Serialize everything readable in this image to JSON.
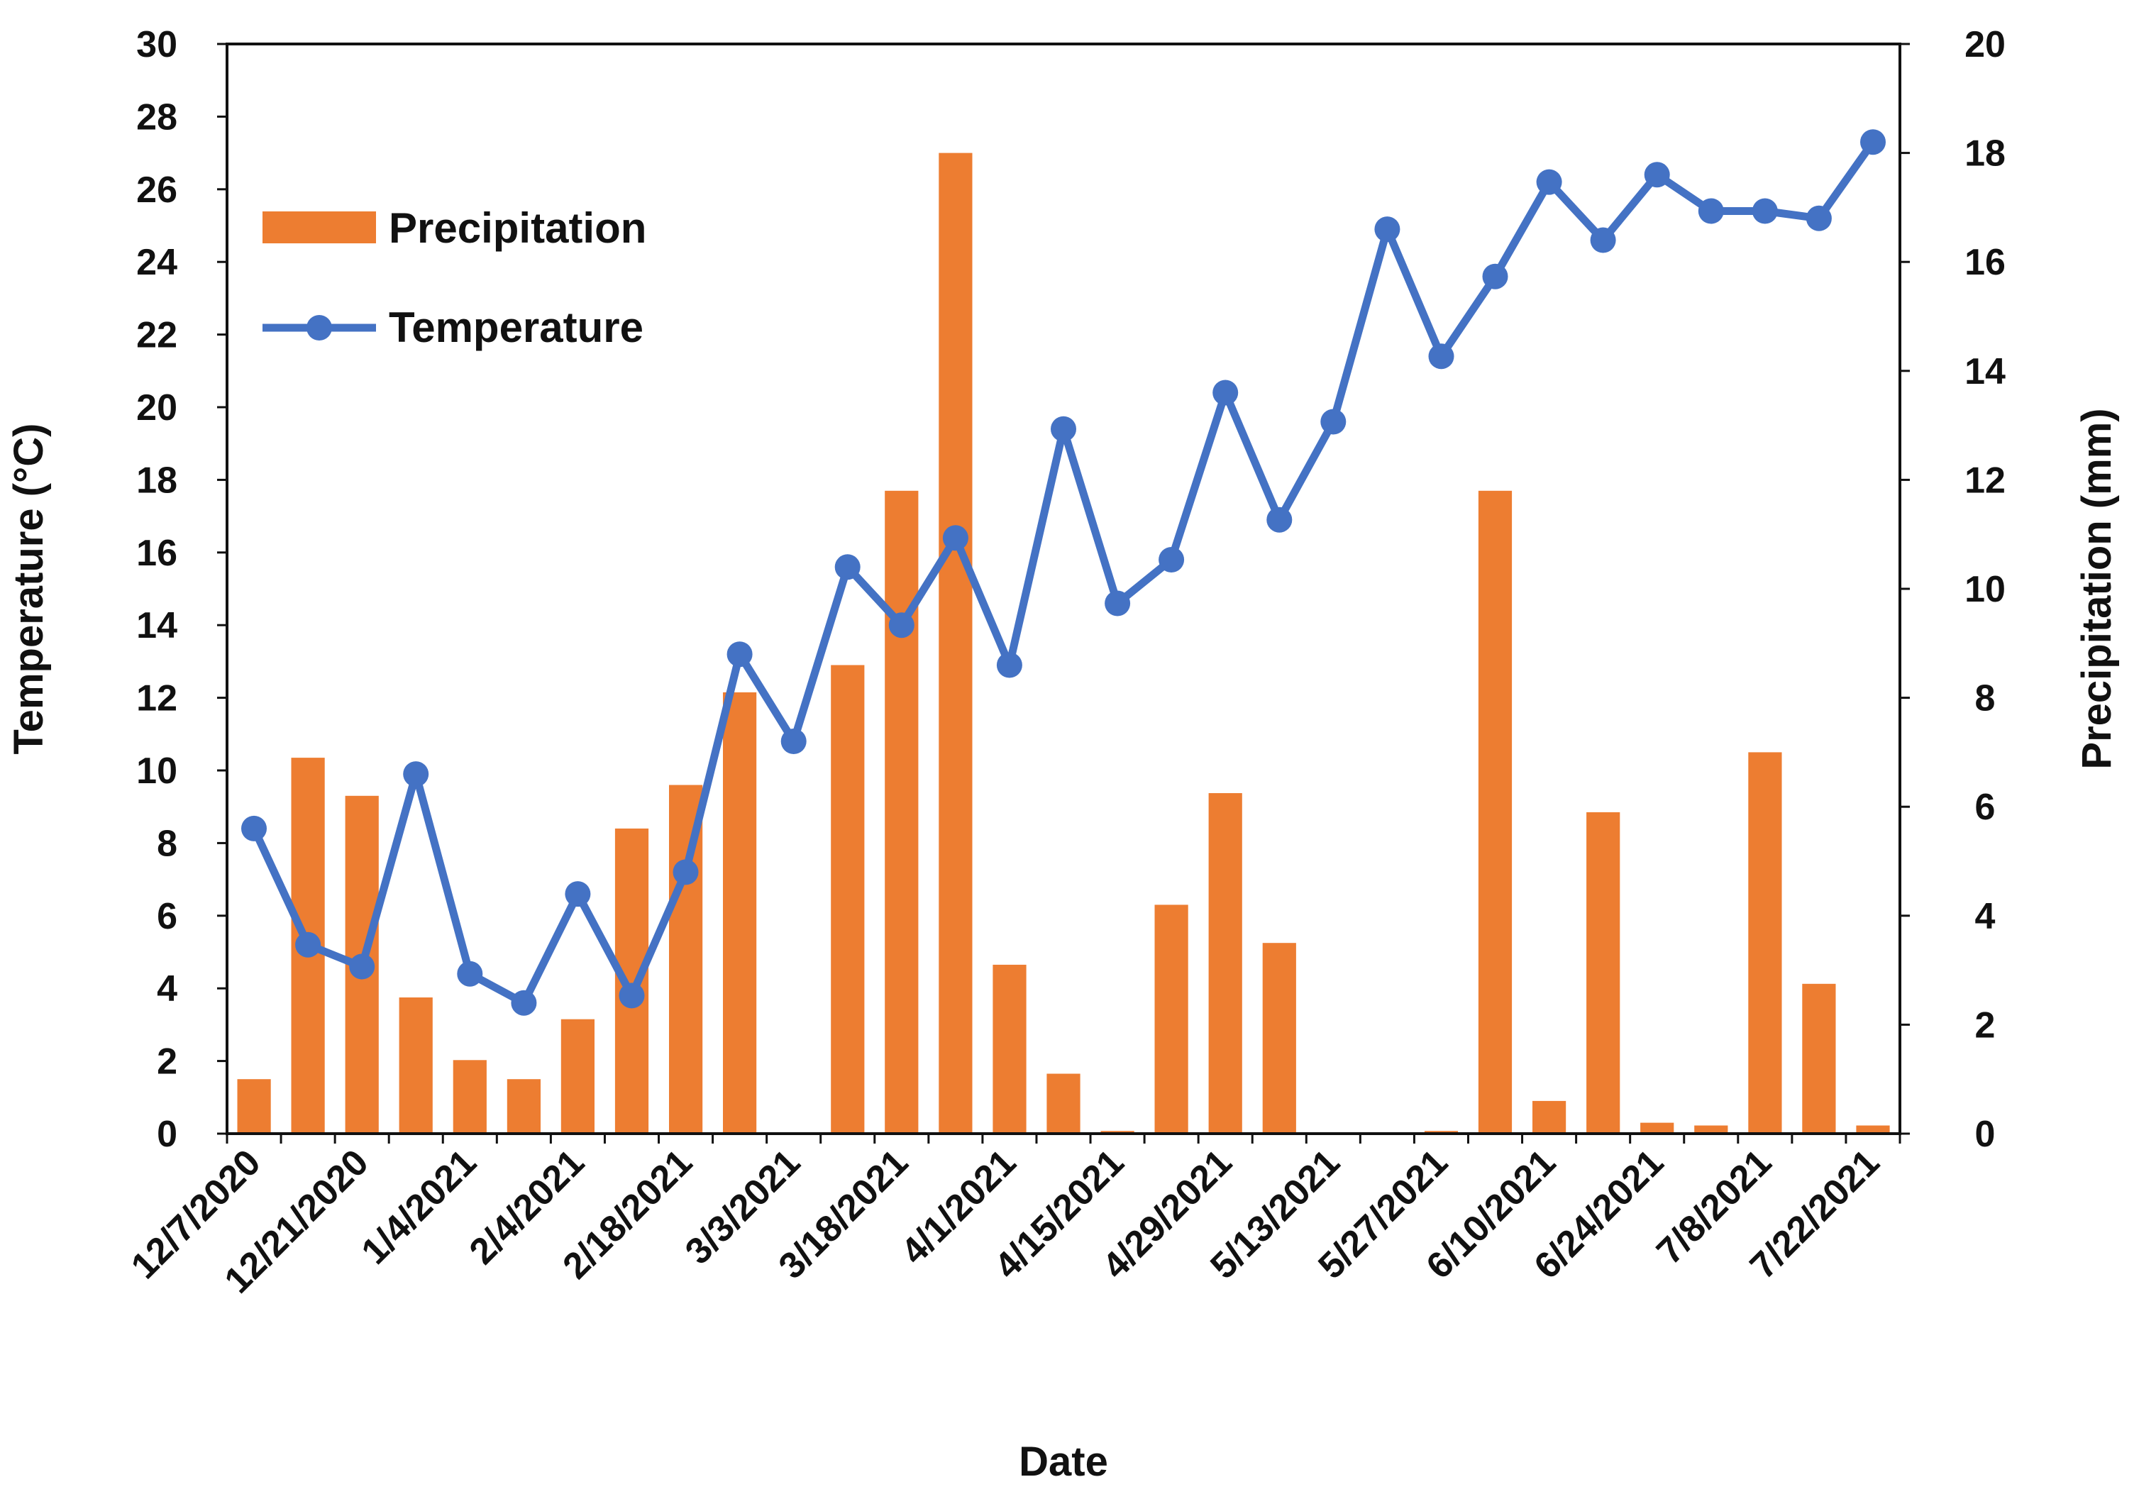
{
  "chart_data": {
    "type": "bar+line",
    "title": "",
    "xlabel": "Date",
    "ylabel_left": "Temperature (°C)",
    "ylabel_right": "Precipitation (mm)",
    "ylim_left": [
      0,
      30
    ],
    "ylim_right": [
      0,
      20
    ],
    "yticks_left": [
      "0",
      "2",
      "4",
      "6",
      "8",
      "10",
      "12",
      "14",
      "16",
      "18",
      "20",
      "22",
      "24",
      "26",
      "28",
      "30"
    ],
    "yticks_right": [
      "0",
      "2",
      "4",
      "6",
      "8",
      "10",
      "12",
      "14",
      "16",
      "18",
      "20"
    ],
    "xtick_labels": [
      "12/7/2020",
      "12/21/2020",
      "1/4/2021",
      "2/4/2021",
      "2/18/2021",
      "3/3/2021",
      "3/18/2021",
      "4/1/2021",
      "4/15/2021",
      "4/29/2021",
      "5/13/2021",
      "5/27/2021",
      "6/10/2021",
      "6/24/2021",
      "7/8/2021",
      "7/22/2021"
    ],
    "n_points": 31,
    "legend": {
      "position": "top-left",
      "entries": [
        "Precipitation",
        "Temperature"
      ]
    },
    "colors": {
      "precipitation": "#ED7D31",
      "temperature": "#4472C4",
      "axis": "#111111"
    },
    "series": [
      {
        "name": "Precipitation",
        "type": "bar",
        "axis": "right",
        "values": [
          1.0,
          6.9,
          6.2,
          2.5,
          1.35,
          1.0,
          2.1,
          5.6,
          6.4,
          8.1,
          0,
          8.6,
          11.8,
          18.0,
          3.1,
          1.1,
          0.05,
          4.2,
          6.25,
          3.5,
          0,
          0,
          0.05,
          11.8,
          0.6,
          5.9,
          0.2,
          0.15,
          7.0,
          2.75,
          0.15
        ]
      },
      {
        "name": "Temperature",
        "type": "line",
        "axis": "left",
        "values": [
          8.4,
          5.2,
          4.6,
          9.9,
          4.4,
          3.6,
          6.6,
          3.8,
          7.2,
          13.2,
          10.8,
          15.6,
          14.0,
          16.4,
          12.9,
          19.4,
          14.6,
          15.8,
          20.4,
          16.9,
          19.6,
          24.9,
          21.4,
          23.6,
          26.2,
          24.6,
          26.4,
          25.4,
          25.4,
          25.2,
          27.3
        ]
      }
    ]
  }
}
